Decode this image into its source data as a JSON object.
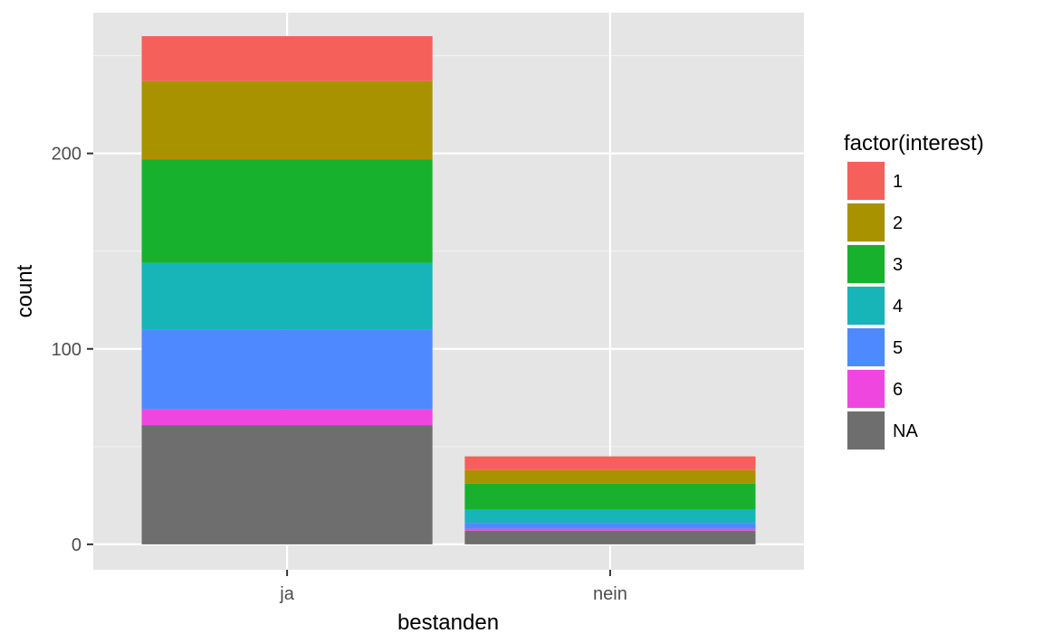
{
  "chart_data": {
    "type": "bar",
    "stacked": true,
    "categories": [
      "ja",
      "nein"
    ],
    "xlabel": "bestanden",
    "ylabel": "count",
    "ylim": [
      -13,
      272
    ],
    "yticks": [
      0,
      100,
      200
    ],
    "grid": true,
    "legend": {
      "title": "factor(interest)",
      "placement": "right"
    },
    "series": [
      {
        "name": "NA",
        "color": "#6e6e6e",
        "values": [
          61,
          7
        ]
      },
      {
        "name": "6",
        "color": "#f046e0",
        "values": [
          8,
          1
        ]
      },
      {
        "name": "5",
        "color": "#4f89ff",
        "values": [
          41,
          3
        ]
      },
      {
        "name": "4",
        "color": "#17b4b8",
        "values": [
          34,
          7
        ]
      },
      {
        "name": "3",
        "color": "#17b12e",
        "values": [
          53,
          13
        ]
      },
      {
        "name": "2",
        "color": "#a89200",
        "values": [
          40,
          7
        ]
      },
      {
        "name": "1",
        "color": "#f5605a",
        "values": [
          23,
          7
        ]
      }
    ],
    "legend_order": [
      "1",
      "2",
      "3",
      "4",
      "5",
      "6",
      "NA"
    ]
  }
}
